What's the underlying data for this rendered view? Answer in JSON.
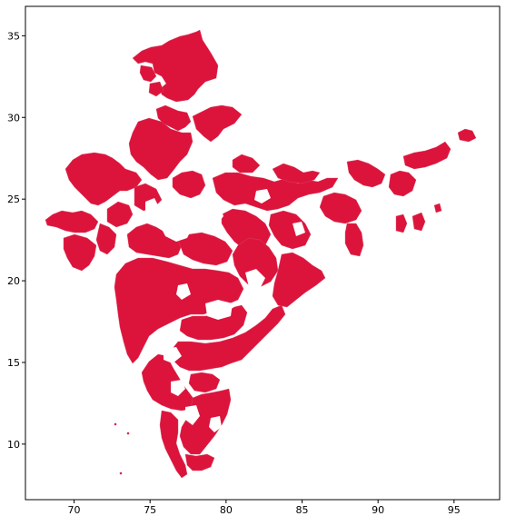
{
  "chart_data": {
    "type": "map",
    "title": "",
    "xlabel": "",
    "ylabel": "",
    "xlim": [
      66.8,
      98.0
    ],
    "ylim": [
      6.6,
      36.8
    ],
    "x_ticks": [
      70,
      75,
      80,
      85,
      90,
      95
    ],
    "y_ticks": [
      10,
      15,
      20,
      25,
      30,
      35
    ],
    "x_tick_labels": [
      "70",
      "75",
      "80",
      "85",
      "90",
      "95"
    ],
    "y_tick_labels": [
      "10",
      "15",
      "20",
      "25",
      "30",
      "35"
    ],
    "grid": false,
    "legend": "none",
    "fill_color": "#dc143c",
    "edge_color": "#d94a68",
    "background_color": "#ffffff"
  }
}
